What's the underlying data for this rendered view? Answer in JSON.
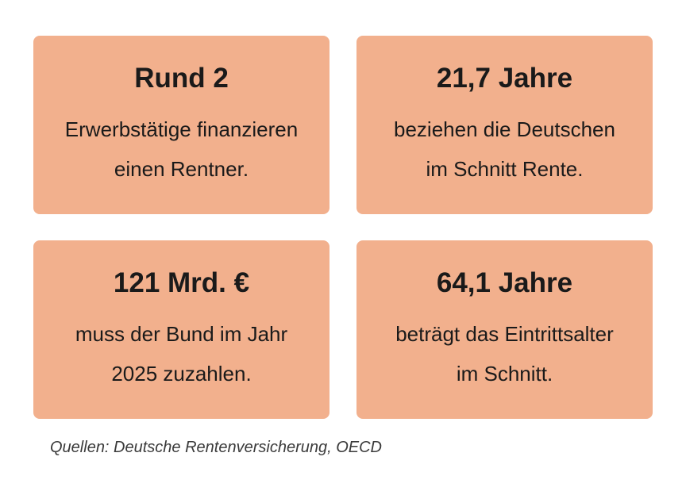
{
  "cards": [
    {
      "value": "Rund 2",
      "line1": "Erwerbstätige finanzieren",
      "line2": "einen Rentner."
    },
    {
      "value": "21,7 Jahre",
      "line1": "beziehen die Deutschen",
      "line2": "im Schnitt Rente."
    },
    {
      "value": "121 Mrd. €",
      "line1": "muss der Bund im Jahr",
      "line2": "2025 zuzahlen."
    },
    {
      "value": "64,1 Jahre",
      "line1": "beträgt das Eintrittsalter",
      "line2": "im Schnitt."
    }
  ],
  "source": "Quellen: Deutsche Rentenversicherung, OECD",
  "colors": {
    "card_background": "#f2b08d",
    "text": "#1a1a1a",
    "source_text": "#3a3a3a"
  }
}
